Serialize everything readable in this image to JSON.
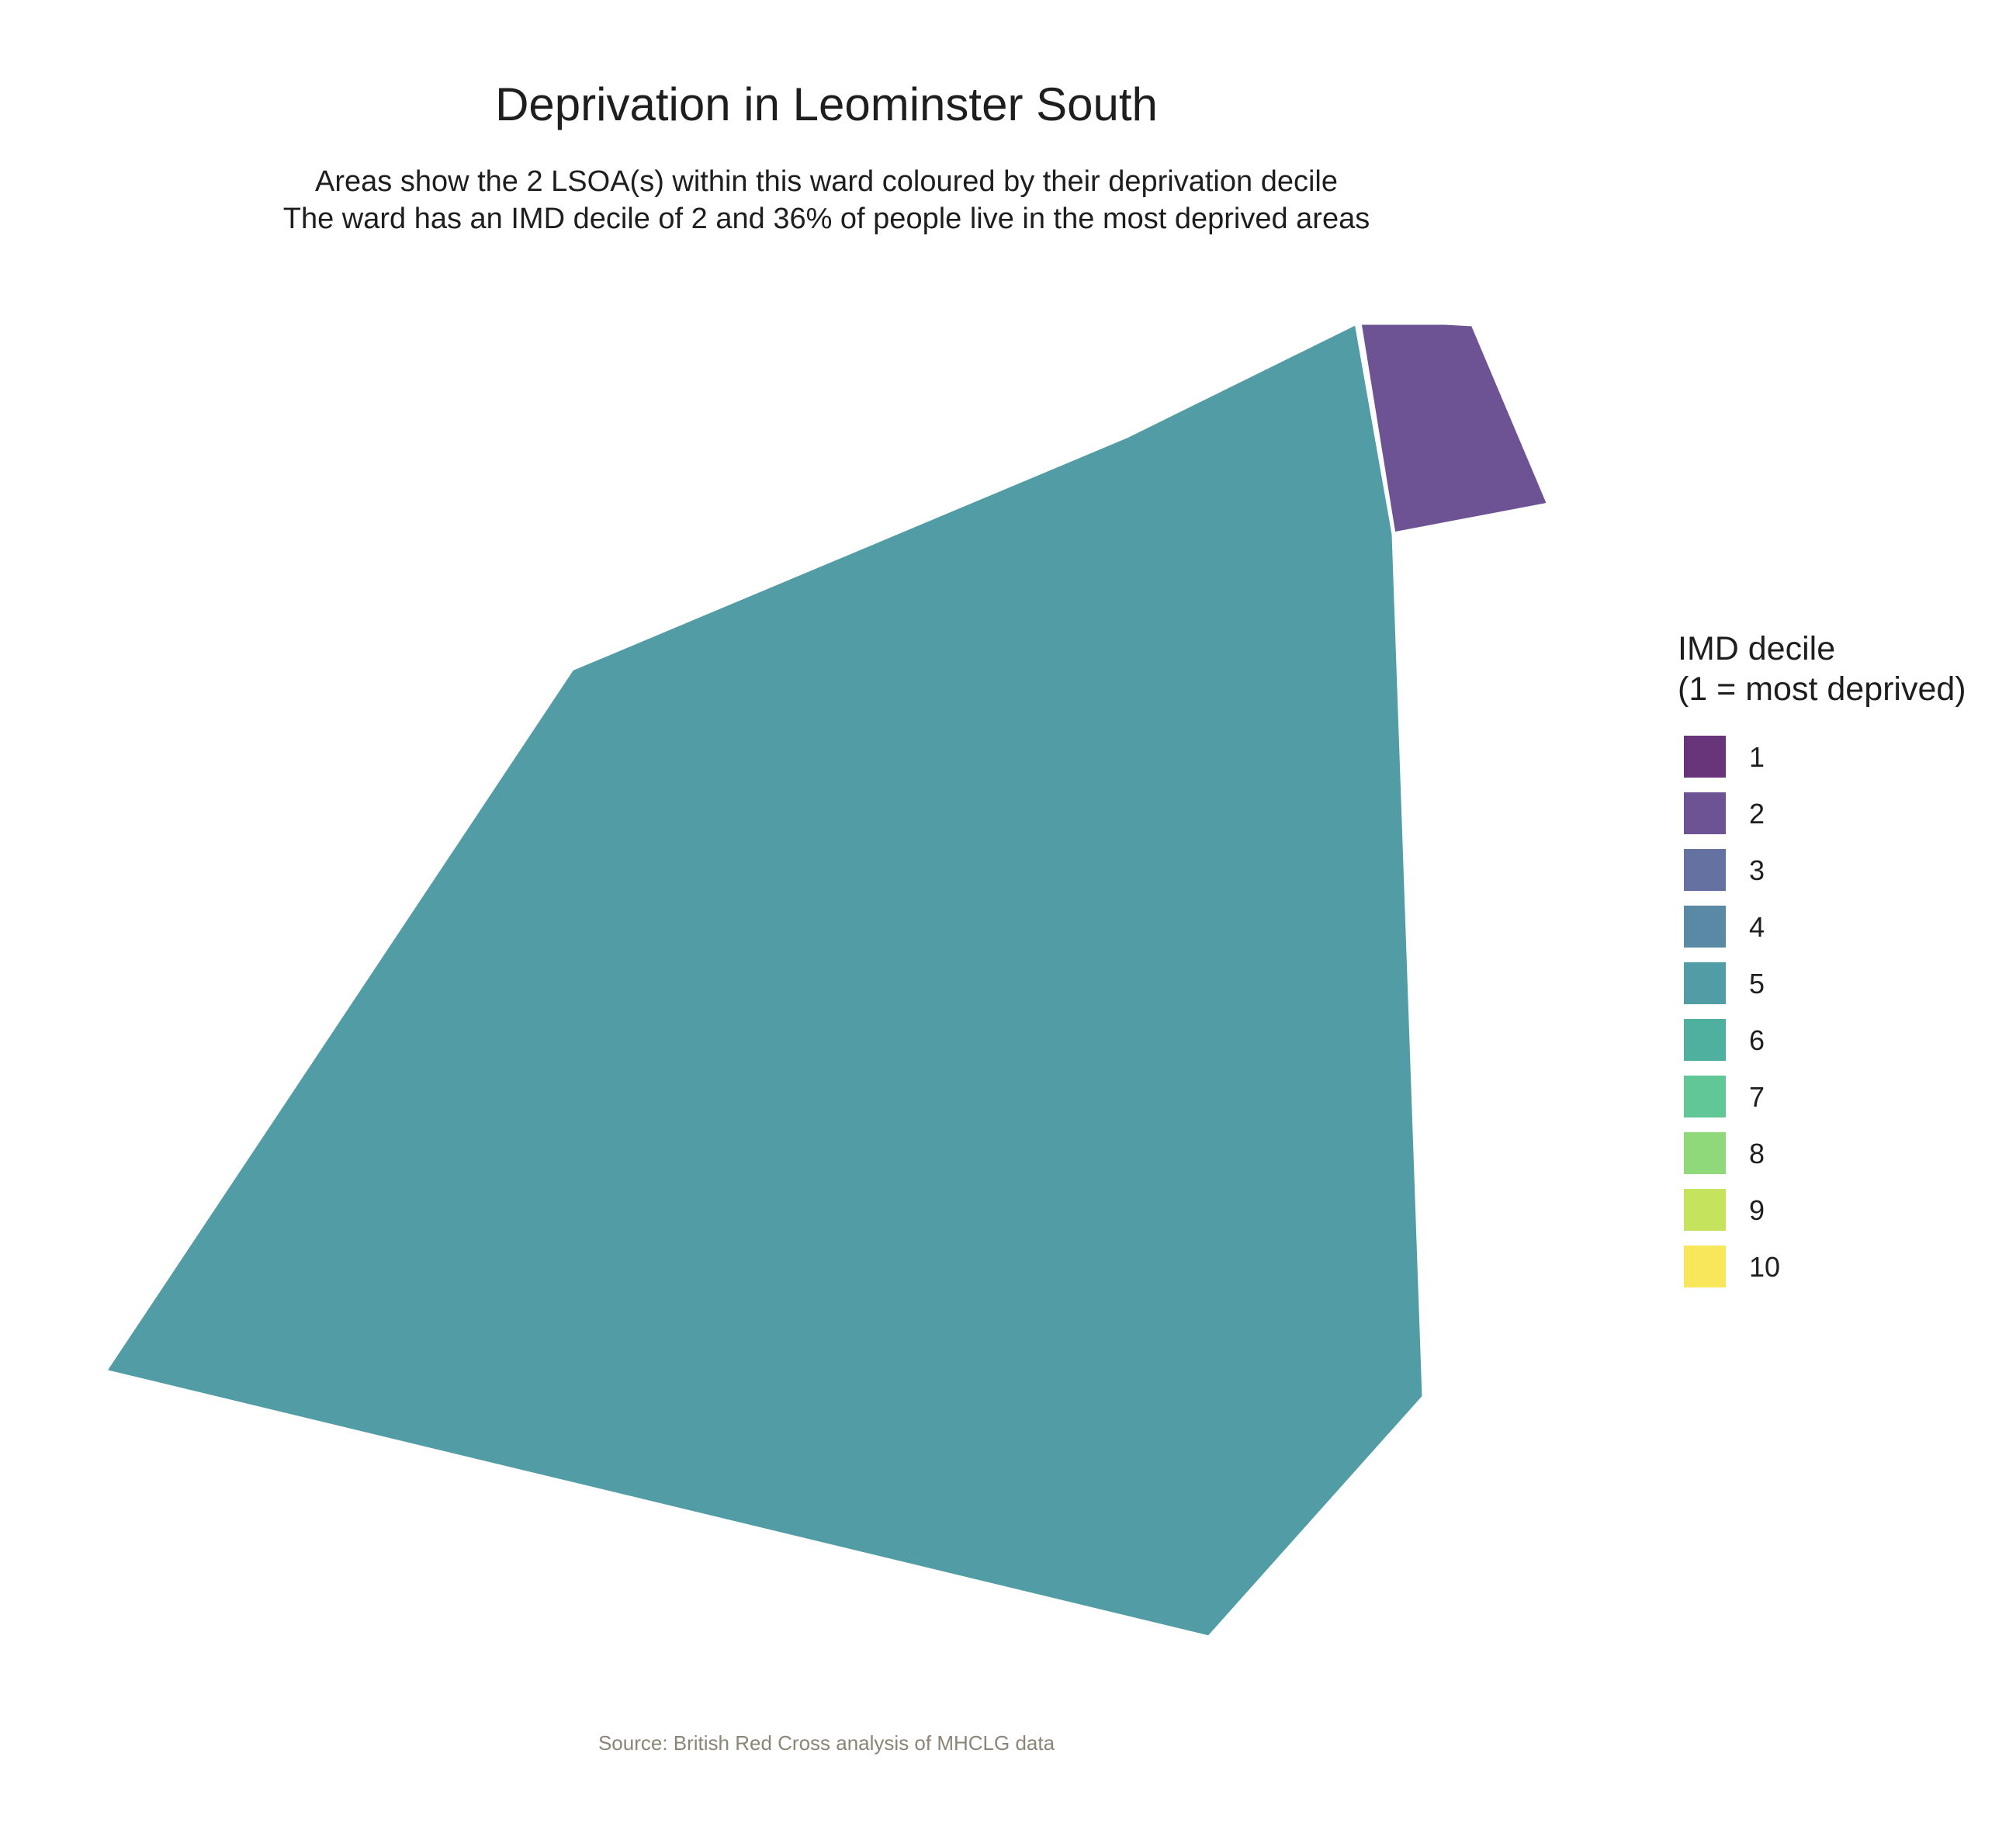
{
  "title": "Deprivation in Leominster South",
  "subtitle": {
    "line1": "Areas show the 2 LSOA(s) within this ward coloured by their deprivation decile",
    "line2": "The ward has an IMD decile of 2 and 36% of people live in the most deprived areas"
  },
  "legend": {
    "title_line1": "IMD decile",
    "title_line2": "(1 = most deprived)",
    "items": [
      {
        "label": "1",
        "color": "#68347a"
      },
      {
        "label": "2",
        "color": "#6e5394"
      },
      {
        "label": "3",
        "color": "#6571a1"
      },
      {
        "label": "4",
        "color": "#5a89a5"
      },
      {
        "label": "5",
        "color": "#529ca5"
      },
      {
        "label": "6",
        "color": "#4fb0a0"
      },
      {
        "label": "7",
        "color": "#62c797"
      },
      {
        "label": "8",
        "color": "#8fd97b"
      },
      {
        "label": "9",
        "color": "#c6e35d"
      },
      {
        "label": "10",
        "color": "#f8e75a"
      }
    ]
  },
  "areas": [
    {
      "decile": 5,
      "color": "#529ca5"
    },
    {
      "decile": 2,
      "color": "#6e5394"
    }
  ],
  "caption": "Source: British Red Cross analysis of MHCLG data"
}
